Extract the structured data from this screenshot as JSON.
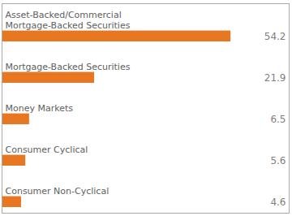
{
  "chart_data": {
    "type": "bar",
    "orientation": "horizontal",
    "categories": [
      "Asset-Backed/Commercial\nMortgage-Backed Securities",
      "Mortgage-Backed Securities",
      "Money Markets",
      "Consumer Cyclical",
      "Consumer Non-Cyclical"
    ],
    "values": [
      54.2,
      21.9,
      6.5,
      5.6,
      4.6
    ],
    "color": "#E87722",
    "xlim": [
      0,
      68
    ],
    "data_labels": true,
    "tick_labels": false,
    "grid": false
  }
}
